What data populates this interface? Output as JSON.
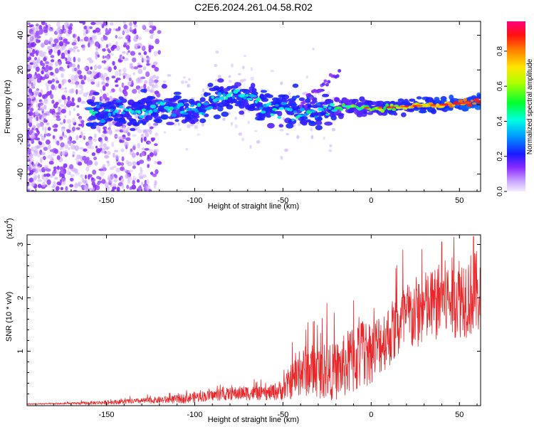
{
  "figure": {
    "title": "C2E6.2024.261.04.58.R02"
  },
  "colors": {
    "snr_line": "#e8272a",
    "axis": "#000000",
    "background": "#ffffff"
  },
  "chart_data": [
    {
      "type": "heatmap",
      "title": "C2E6.2024.261.04.58.R02",
      "xlabel": "Height of straight line (km)",
      "ylabel": "Frequency (Hz)",
      "xlim": [
        -195,
        62
      ],
      "ylim": [
        -50,
        48
      ],
      "xticks": [
        -150,
        -100,
        -50,
        0,
        50
      ],
      "yticks": [
        -40,
        -20,
        0,
        20,
        40
      ],
      "colorbar": {
        "label": "Normalized spectral amplitude",
        "range": [
          0,
          0.97
        ],
        "ticks": [
          0.0,
          0.2,
          0.4,
          0.6,
          0.8
        ],
        "colormap": "rainbow (white-violet to red)"
      },
      "description_of_data": {
        "ridge_frequency_hz": [
          {
            "x": -155,
            "y": -4
          },
          {
            "x": -140,
            "y": -4
          },
          {
            "x": -120,
            "y": -2
          },
          {
            "x": -100,
            "y": -3
          },
          {
            "x": -90,
            "y": 2
          },
          {
            "x": -80,
            "y": 6
          },
          {
            "x": -70,
            "y": 4
          },
          {
            "x": -60,
            "y": -2
          },
          {
            "x": -45,
            "y": -2
          },
          {
            "x": -35,
            "y": -4
          },
          {
            "x": -20,
            "y": -2
          },
          {
            "x": -10,
            "y": -1
          },
          {
            "x": 0,
            "y": -2
          },
          {
            "x": 20,
            "y": -1
          },
          {
            "x": 40,
            "y": 0
          },
          {
            "x": 55,
            "y": 1
          },
          {
            "x": 62,
            "y": 2
          }
        ]
      },
      "grid": false
    },
    {
      "type": "line",
      "xlabel": "Height of straight line (km)",
      "ylabel": "SNR (10 * v/v)",
      "y_multiplier": "(x10",
      "y_multiplier_exp": "4",
      "xlim": [
        -195,
        62
      ],
      "ylim": [
        -0.02,
        3.18
      ],
      "xticks": [
        -150,
        -100,
        -50,
        0,
        50
      ],
      "yticks": [
        1,
        2,
        3
      ],
      "grid": false,
      "series": [
        {
          "color": "#e8272a",
          "envelope_x": [
            -195,
            -170,
            -150,
            -130,
            -110,
            -100,
            -90,
            -80,
            -70,
            -60,
            -50,
            -45,
            -40,
            -35,
            -30,
            -25,
            -20,
            -15,
            -10,
            -5,
            0,
            5,
            10,
            15,
            20,
            25,
            30,
            35,
            40,
            45,
            50,
            55,
            62
          ],
          "envelope_mean": [
            0.01,
            0.02,
            0.04,
            0.07,
            0.1,
            0.14,
            0.17,
            0.2,
            0.22,
            0.2,
            0.28,
            0.45,
            0.6,
            0.65,
            0.62,
            0.6,
            0.62,
            0.72,
            0.85,
            0.95,
            1.0,
            1.15,
            1.3,
            1.45,
            1.6,
            1.7,
            1.8,
            1.85,
            1.95,
            2.0,
            2.05,
            2.05,
            2.1
          ],
          "envelope_spread": [
            0.01,
            0.02,
            0.04,
            0.05,
            0.08,
            0.1,
            0.1,
            0.12,
            0.14,
            0.12,
            0.2,
            0.35,
            0.45,
            0.5,
            0.5,
            0.5,
            0.55,
            0.6,
            0.7,
            0.7,
            0.6,
            0.6,
            0.6,
            0.65,
            0.7,
            0.7,
            0.7,
            0.7,
            0.75,
            0.75,
            0.8,
            0.8,
            0.8
          ],
          "peaks": [
            {
              "x": -37,
              "y": 1.4
            },
            {
              "x": -25,
              "y": 1.9
            },
            {
              "x": -10,
              "y": 1.95
            },
            {
              "x": 18,
              "y": 2.9
            },
            {
              "x": 40,
              "y": 3.05
            },
            {
              "x": 58,
              "y": 3.15
            }
          ]
        }
      ]
    }
  ]
}
